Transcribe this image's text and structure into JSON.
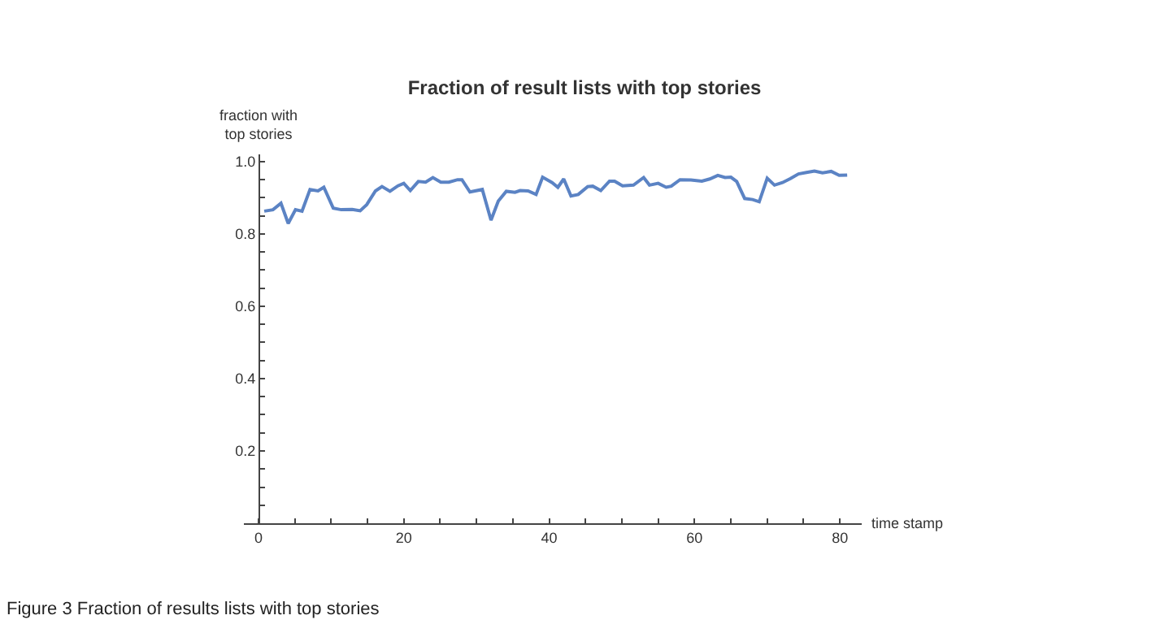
{
  "chart_data": {
    "type": "line",
    "title": "Fraction of result lists with top stories",
    "xlabel": "time stamp",
    "ylabel": "fraction with\ntop stories",
    "annotations": [
      "Figure 3 Fraction of results lists with top stories"
    ],
    "x": [
      0.8,
      2.0,
      3.1,
      4.1,
      5.1,
      6.0,
      7.1,
      8.2,
      9.0,
      10.3,
      11.4,
      12.9,
      14.0,
      14.9,
      16.1,
      17.0,
      18.1,
      19.2,
      20.0,
      20.9,
      22.0,
      23.0,
      24.0,
      25.1,
      26.2,
      27.4,
      28.0,
      29.1,
      30.8,
      32.0,
      33.0,
      34.1,
      35.3,
      36.0,
      37.1,
      38.2,
      39.1,
      40.4,
      41.2,
      42.0,
      43.0,
      44.0,
      45.3,
      46.0,
      47.1,
      48.3,
      49.0,
      50.1,
      51.6,
      53.0,
      53.8,
      55.0,
      56.1,
      56.8,
      58.0,
      59.5,
      61.0,
      62.1,
      63.2,
      64.2,
      65.0,
      65.8,
      66.9,
      68.0,
      68.9,
      70.0,
      71.0,
      72.1,
      73.2,
      74.3,
      75.4,
      76.5,
      77.6,
      78.8,
      79.9,
      81.0
    ],
    "series": [
      {
        "color": "#5b83c4",
        "values": [
          0.863,
          0.867,
          0.885,
          0.829,
          0.867,
          0.863,
          0.923,
          0.919,
          0.929,
          0.871,
          0.867,
          0.868,
          0.864,
          0.881,
          0.919,
          0.931,
          0.918,
          0.933,
          0.94,
          0.92,
          0.945,
          0.943,
          0.956,
          0.943,
          0.943,
          0.95,
          0.95,
          0.916,
          0.923,
          0.838,
          0.891,
          0.918,
          0.915,
          0.92,
          0.919,
          0.909,
          0.957,
          0.942,
          0.929,
          0.952,
          0.905,
          0.909,
          0.931,
          0.932,
          0.92,
          0.946,
          0.946,
          0.933,
          0.935,
          0.956,
          0.935,
          0.94,
          0.929,
          0.932,
          0.95,
          0.949,
          0.946,
          0.952,
          0.962,
          0.956,
          0.957,
          0.945,
          0.898,
          0.895,
          0.889,
          0.954,
          0.935,
          0.942,
          0.953,
          0.966,
          0.97,
          0.974,
          0.969,
          0.973,
          0.962,
          0.963
        ]
      }
    ],
    "xlim": [
      -2,
      83
    ],
    "ylim": [
      0,
      1.02
    ],
    "xticks": [
      0,
      {
        "value": 5,
        "label": null
      },
      {
        "value": 10,
        "label": null
      },
      {
        "value": 15,
        "label": null
      },
      20,
      {
        "value": 25,
        "label": null
      },
      {
        "value": 30,
        "label": null
      },
      {
        "value": 35,
        "label": null
      },
      40,
      {
        "value": 45,
        "label": null
      },
      {
        "value": 50,
        "label": null
      },
      {
        "value": 55,
        "label": null
      },
      60,
      {
        "value": 65,
        "label": null
      },
      {
        "value": 70,
        "label": null
      },
      {
        "value": 75,
        "label": null
      },
      80
    ],
    "yticks": [
      {
        "value": 0.05,
        "label": null
      },
      {
        "value": 0.1,
        "label": null
      },
      {
        "value": 0.15,
        "label": null
      },
      0.2,
      {
        "value": 0.25,
        "label": null
      },
      {
        "value": 0.3,
        "label": null
      },
      {
        "value": 0.35,
        "label": null
      },
      0.4,
      {
        "value": 0.45,
        "label": null
      },
      {
        "value": 0.5,
        "label": null
      },
      {
        "value": 0.55,
        "label": null
      },
      0.6,
      {
        "value": 0.65,
        "label": null
      },
      {
        "value": 0.7,
        "label": null
      },
      {
        "value": 0.75,
        "label": null
      },
      0.8,
      {
        "value": 0.85,
        "label": null
      },
      {
        "value": 0.9,
        "label": null
      },
      {
        "value": 0.95,
        "label": null
      },
      {
        "value": 1.0,
        "label": "1.0"
      }
    ],
    "legend": false,
    "marker": "none",
    "line_style": "solid"
  }
}
